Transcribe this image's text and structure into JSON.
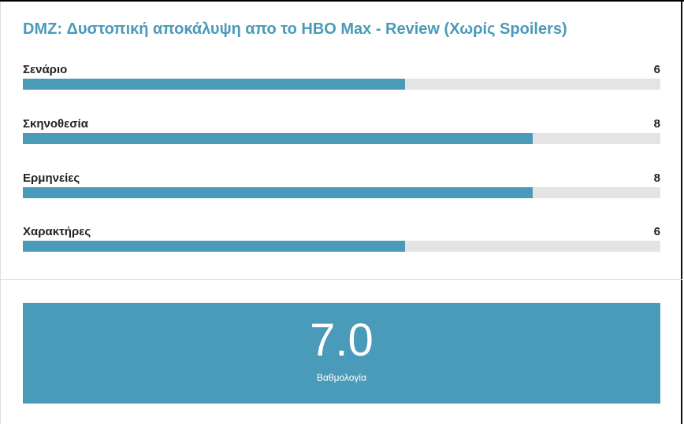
{
  "review": {
    "title": "DMZ: Δυστοπική αποκάλυψη απο το HBO Max - Review (Χωρίς Spoilers)",
    "max_score": 10,
    "accent_color": "#4a9aba",
    "criteria": [
      {
        "label": "Σενάριο",
        "value": "6"
      },
      {
        "label": "Σκηνοθεσία",
        "value": "8"
      },
      {
        "label": "Ερμηνείες",
        "value": "8"
      },
      {
        "label": "Χαρακτήρες",
        "value": "6"
      }
    ],
    "total": {
      "value": "7.0",
      "label": "Βαθμολογία"
    }
  }
}
